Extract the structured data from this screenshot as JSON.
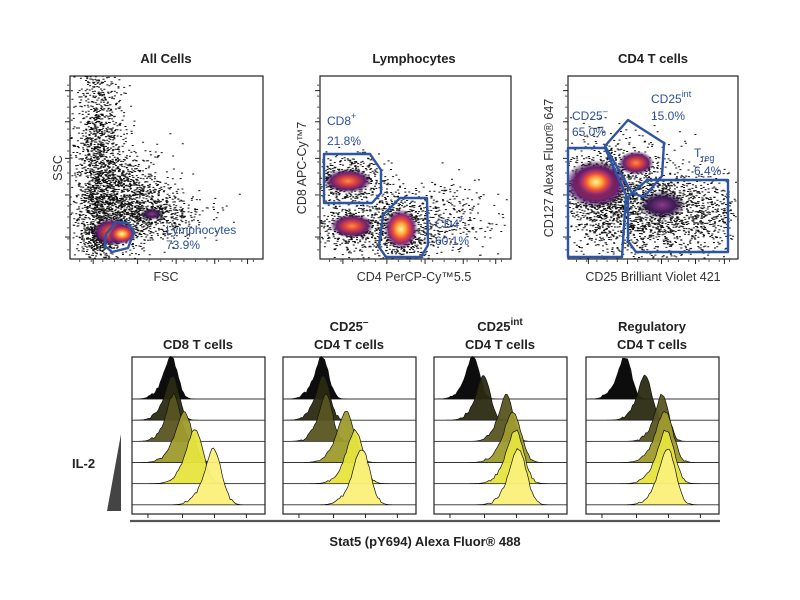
{
  "colors": {
    "gate": "#2d55a4",
    "gate_text": "#2d4f9c",
    "histogram_ramp": [
      "#000000",
      "#2b2a12",
      "#595521",
      "#9f9b2d",
      "#e6e43e",
      "#faf07a"
    ]
  },
  "chart_data": [
    {
      "type": "scatter",
      "title": "All Cells",
      "xlabel": "FSC",
      "ylabel": "SSC",
      "gates": [
        {
          "name": "Lymphocytes",
          "label": "Lymphocytes",
          "percent": "73.9%"
        }
      ]
    },
    {
      "type": "scatter",
      "title": "Lymphocytes",
      "xlabel": "CD4 PerCP-Cy™5.5",
      "ylabel": "CD8 APC-Cy™7",
      "gates": [
        {
          "name": "CD8+",
          "label": "CD8",
          "sup": "+",
          "percent": "21.8%"
        },
        {
          "name": "CD4+",
          "label": "CD4",
          "sup": "+",
          "percent": "60.1%"
        }
      ]
    },
    {
      "type": "scatter",
      "title": "CD4 T cells",
      "xlabel": "CD25 Brilliant Violet 421",
      "ylabel": "CD127 Alexa Fluor® 647",
      "gates": [
        {
          "name": "CD25-",
          "label": "CD25",
          "sup": "–",
          "percent": "65.0%"
        },
        {
          "name": "CD25int",
          "label": "CD25",
          "sup": "int",
          "percent": "15.0%"
        },
        {
          "name": "Treg",
          "label": "T",
          "sub": "reg",
          "percent": "6.4%"
        }
      ]
    },
    {
      "type": "histogram_stack",
      "shared_xlabel": "Stat5 (pY694) Alexa Fluor® 488",
      "row_label": "IL-2",
      "stimulation_levels": 6,
      "panels": [
        {
          "title_line1": "",
          "title_line2": "CD8 T cells",
          "peaks": [
            0.3,
            0.31,
            0.32,
            0.4,
            0.48,
            0.62
          ]
        },
        {
          "title_line1": "CD25",
          "title_sup": "–",
          "title_line2": "CD4 T cells",
          "peaks": [
            0.3,
            0.31,
            0.33,
            0.48,
            0.55,
            0.6
          ]
        },
        {
          "title_line1": "CD25",
          "title_sup": "int",
          "title_line2": "CD4 T cells",
          "peaks": [
            0.3,
            0.38,
            0.55,
            0.6,
            0.62,
            0.64
          ]
        },
        {
          "title_line1": "Regulatory",
          "title_line2": "CD4 T cells",
          "peaks": [
            0.3,
            0.45,
            0.58,
            0.6,
            0.61,
            0.62
          ]
        }
      ]
    }
  ]
}
